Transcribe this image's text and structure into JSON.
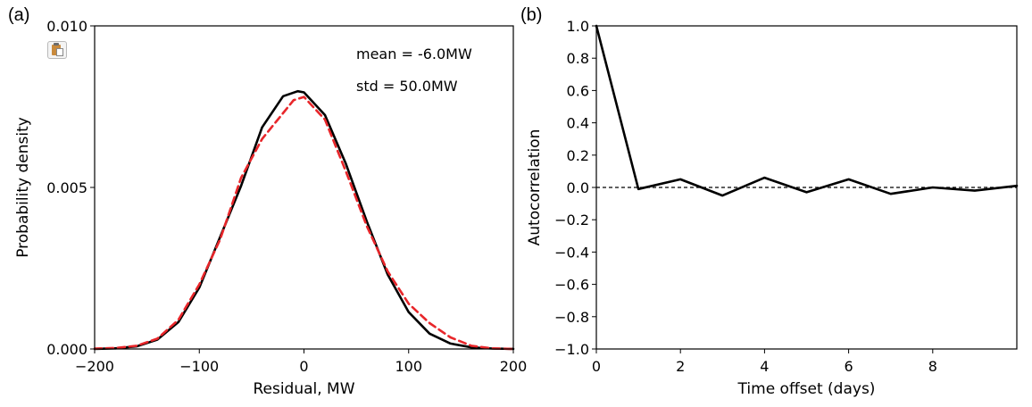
{
  "panels": [
    {
      "label": "(a)"
    },
    {
      "label": "(b)"
    }
  ],
  "icons": {
    "paste": "clipboard-paste-icon"
  },
  "colors": {
    "fitted_curve": "#000000",
    "empirical_curve": "#e8262a",
    "zero_line": "#000000"
  },
  "chart_data": [
    {
      "type": "line",
      "title": "",
      "xlabel": "Residual, MW",
      "ylabel": "Probability density",
      "xlim": [
        -200,
        200
      ],
      "ylim": [
        0,
        0.01
      ],
      "xticks": [
        -200,
        -100,
        0,
        100,
        200
      ],
      "xtick_labels": [
        "−200",
        "−100",
        "0",
        "100",
        "200"
      ],
      "yticks": [
        0,
        0.005,
        0.01
      ],
      "ytick_labels": [
        "0.000",
        "0.005",
        "0.010"
      ],
      "annotations": [
        "mean = -6.0MW",
        "std = 50.0MW"
      ],
      "grid": false,
      "series": [
        {
          "style": "solid",
          "color": "#000000",
          "x": [
            -200,
            -180,
            -160,
            -140,
            -120,
            -100,
            -80,
            -60,
            -40,
            -20,
            -6,
            0,
            20,
            40,
            60,
            80,
            100,
            120,
            140,
            160,
            180,
            200
          ],
          "y": [
            3e-06,
            1.8e-05,
            8.1e-05,
            0.000289,
            0.000831,
            0.001902,
            0.003473,
            0.005053,
            0.006859,
            0.007823,
            0.007979,
            0.007943,
            0.007241,
            0.005736,
            0.003946,
            0.002304,
            0.001141,
            0.000476,
            0.000168,
            5e-05,
            1.3e-05,
            3e-06
          ]
        },
        {
          "style": "dashed",
          "color": "#e8262a",
          "x": [
            -200,
            -180,
            -160,
            -140,
            -120,
            -100,
            -80,
            -60,
            -40,
            -25,
            -10,
            0,
            20,
            40,
            60,
            80,
            100,
            120,
            140,
            160,
            180,
            200
          ],
          "y": [
            1e-05,
            3e-05,
            0.0001,
            0.00032,
            0.0009,
            0.002,
            0.0034,
            0.0053,
            0.0065,
            0.0071,
            0.0077,
            0.0078,
            0.0071,
            0.0055,
            0.0038,
            0.0024,
            0.0014,
            0.0008,
            0.00036,
            0.0001,
            2e-05,
            0.0
          ]
        }
      ]
    },
    {
      "type": "line",
      "title": "",
      "xlabel": "Time offset (days)",
      "ylabel": "Autocorrelation",
      "xlim": [
        0,
        10
      ],
      "ylim": [
        -1.0,
        1.0
      ],
      "xticks": [
        0,
        2,
        4,
        6,
        8
      ],
      "xtick_labels": [
        "0",
        "2",
        "4",
        "6",
        "8"
      ],
      "yticks": [
        -1.0,
        -0.8,
        -0.6,
        -0.4,
        -0.2,
        0.0,
        0.2,
        0.4,
        0.6,
        0.8,
        1.0
      ],
      "ytick_labels": [
        "−1.0",
        "−0.8",
        "−0.6",
        "−0.4",
        "−0.2",
        "0.0",
        "0.2",
        "0.4",
        "0.6",
        "0.8",
        "1.0"
      ],
      "grid": false,
      "reference_line": {
        "y": 0.0,
        "style": "dashed"
      },
      "series": [
        {
          "style": "solid",
          "color": "#000000",
          "x": [
            0,
            1,
            2,
            3,
            4,
            5,
            6,
            7,
            8,
            9,
            10
          ],
          "y": [
            1.0,
            -0.01,
            0.05,
            -0.05,
            0.06,
            -0.03,
            0.05,
            -0.04,
            0.0,
            -0.02,
            0.01
          ]
        }
      ]
    }
  ]
}
